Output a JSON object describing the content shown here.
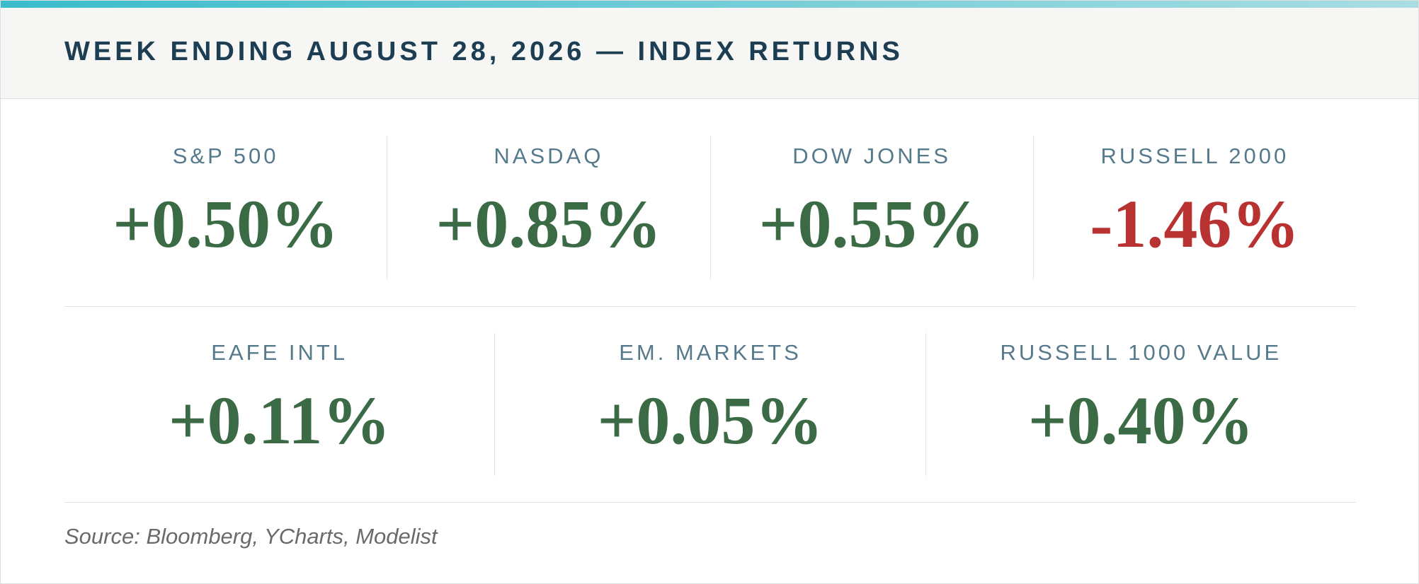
{
  "header": {
    "title": "WEEK ENDING AUGUST 28, 2026 — INDEX RETURNS"
  },
  "rows": [
    [
      {
        "label": "S&P 500",
        "value": "+0.50%",
        "color": "#3a6b45"
      },
      {
        "label": "NASDAQ",
        "value": "+0.85%",
        "color": "#3a6b45"
      },
      {
        "label": "DOW JONES",
        "value": "+0.55%",
        "color": "#3a6b45"
      },
      {
        "label": "RUSSELL 2000",
        "value": "-1.46%",
        "color": "#b83232"
      }
    ],
    [
      {
        "label": "EAFE INTL",
        "value": "+0.11%",
        "color": "#3a6b45"
      },
      {
        "label": "EM. MARKETS",
        "value": "+0.05%",
        "color": "#3a6b45"
      },
      {
        "label": "RUSSELL 1000 VALUE",
        "value": "+0.40%",
        "color": "#3a6b45"
      }
    ]
  ],
  "footer": {
    "source": "Source: Bloomberg, YCharts, Modelist"
  }
}
